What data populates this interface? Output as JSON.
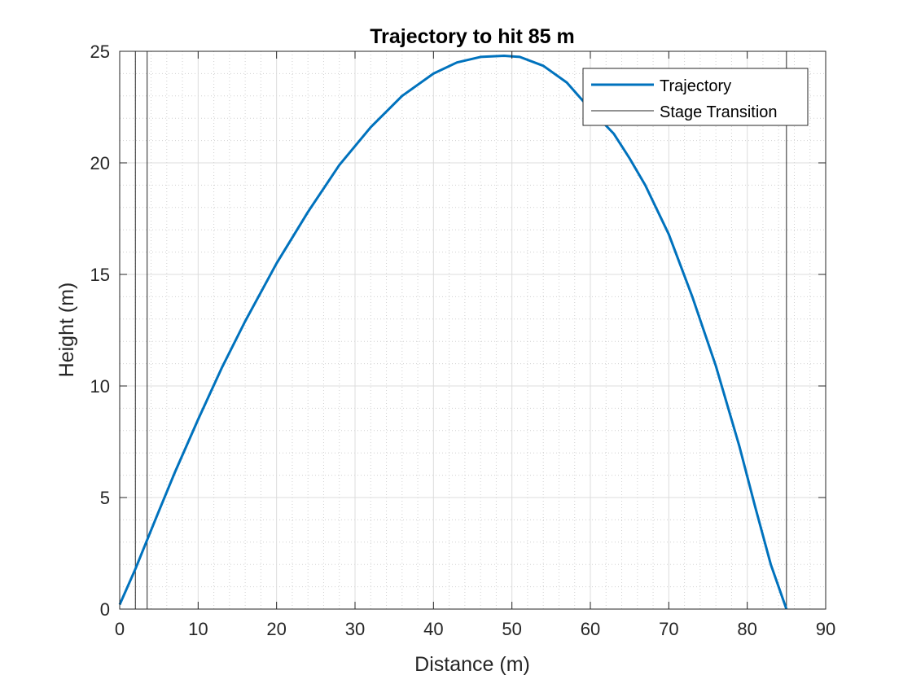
{
  "chart_data": {
    "type": "line",
    "title": "Trajectory to hit 85 m",
    "xlabel": "Distance (m)",
    "ylabel": "Height (m)",
    "xlim": [
      0,
      90
    ],
    "ylim": [
      0,
      25
    ],
    "xticks": [
      0,
      10,
      20,
      30,
      40,
      50,
      60,
      70,
      80,
      90
    ],
    "yticks": [
      0,
      5,
      10,
      15,
      20,
      25
    ],
    "grid": true,
    "minor_grid": true,
    "legend_position": "top-right",
    "series": [
      {
        "name": "Trajectory",
        "color": "#0072BD",
        "x": [
          0,
          2,
          3.5,
          5,
          7,
          10,
          13,
          16,
          20,
          24,
          28,
          32,
          36,
          40,
          43,
          46,
          49,
          51,
          54,
          57,
          60,
          63,
          65,
          67,
          70,
          73,
          76,
          79,
          81,
          83,
          85
        ],
        "y": [
          0.2,
          1.8,
          3.1,
          4.4,
          6.1,
          8.5,
          10.8,
          12.9,
          15.5,
          17.8,
          19.9,
          21.6,
          23.0,
          24.0,
          24.5,
          24.75,
          24.8,
          24.75,
          24.35,
          23.6,
          22.4,
          21.3,
          20.2,
          19.0,
          16.8,
          14.0,
          10.9,
          7.3,
          4.6,
          2.0,
          0
        ]
      },
      {
        "name": "Stage Transition",
        "color": "#262626",
        "vlines": [
          2,
          3.5,
          85
        ]
      }
    ]
  }
}
